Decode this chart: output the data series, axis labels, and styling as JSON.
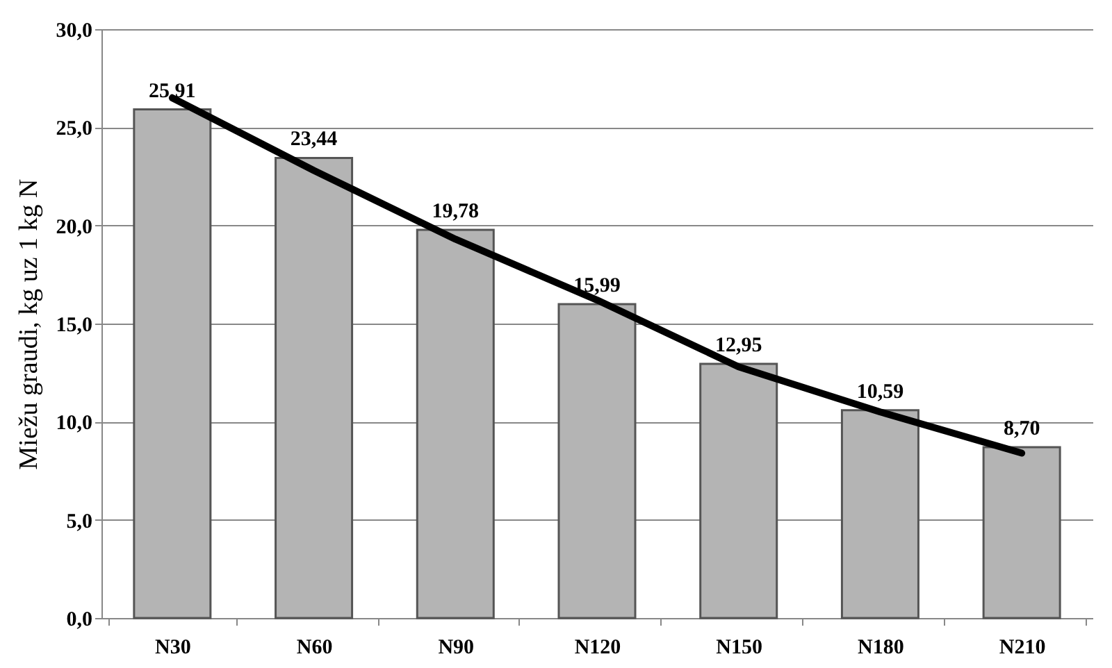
{
  "chart_data": {
    "type": "bar",
    "ylabel": "Miežu graudi, kg uz 1 kg N",
    "categories": [
      "N30",
      "N60",
      "N90",
      "N120",
      "N150",
      "N180",
      "N210"
    ],
    "series": [
      {
        "color": "#b4b4b4",
        "values": [
          25.91,
          23.44,
          19.78,
          15.99,
          12.95,
          10.59,
          8.7
        ],
        "value_labels": [
          "25,91",
          "23,44",
          "19,78",
          "15,99",
          "12,95",
          "10,59",
          "8,70"
        ]
      },
      {
        "type": "line",
        "color": "#000000",
        "values": [
          26.5,
          22.8,
          19.3,
          16.2,
          12.8,
          10.5,
          8.4
        ]
      }
    ],
    "ylim": [
      0,
      30
    ],
    "yticks": [
      {
        "value": 0,
        "label": "0,0"
      },
      {
        "value": 5,
        "label": "5,0"
      },
      {
        "value": 10,
        "label": "10,0"
      },
      {
        "value": 15,
        "label": "15,0"
      },
      {
        "value": 20,
        "label": "20,0"
      },
      {
        "value": 25,
        "label": "25,0"
      },
      {
        "value": 30,
        "label": "30,0"
      }
    ],
    "grid": "y"
  }
}
